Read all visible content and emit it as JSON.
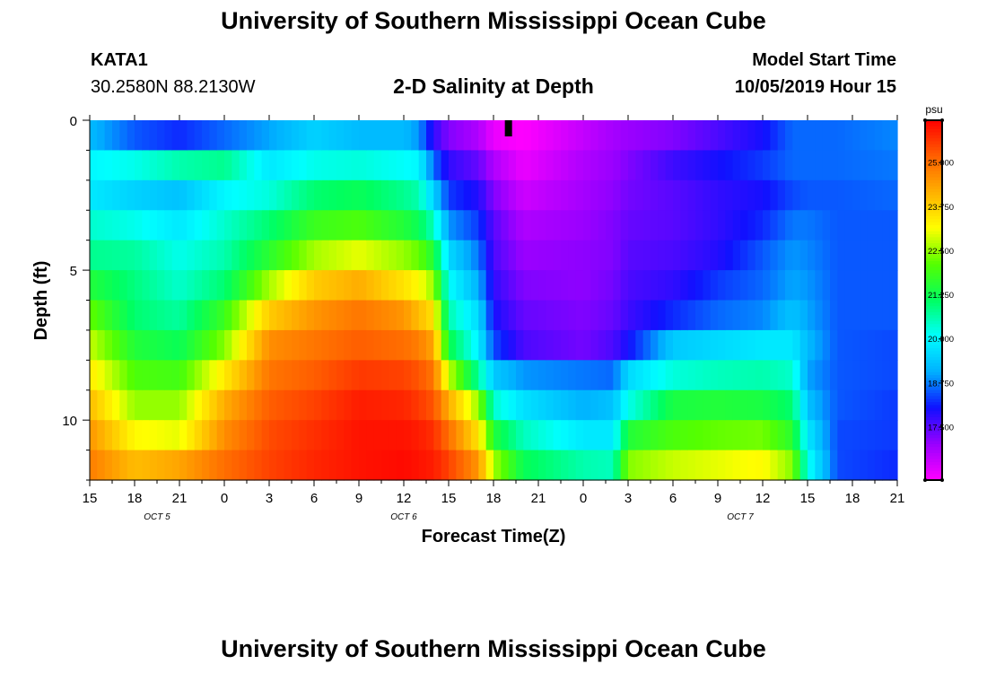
{
  "header": {
    "title": "University of Southern Mississippi Ocean Cube",
    "station": "KATA1",
    "coords": "30.2580N 88.2130W",
    "chart_title": "2-D Salinity at Depth",
    "model_label": "Model Start Time",
    "model_time": "10/05/2019 Hour 15"
  },
  "footer": {
    "title": "University of Southern Mississippi Ocean Cube"
  },
  "chart_data": {
    "type": "heatmap",
    "title": "2-D Salinity at Depth",
    "xlabel": "Forecast Time(Z)",
    "ylabel": "Depth (ft)",
    "x_tick_labels": [
      "15",
      "18",
      "21",
      "0",
      "3",
      "6",
      "9",
      "12",
      "15",
      "18",
      "21",
      "0",
      "3",
      "6",
      "9",
      "12",
      "15",
      "18",
      "21"
    ],
    "x_hours": [
      0,
      3,
      6,
      9,
      12,
      15,
      18,
      21,
      24,
      27,
      30,
      33,
      36,
      39,
      42,
      45,
      48,
      51,
      54
    ],
    "date_labels": [
      {
        "label": "OCT 5",
        "hour": 4.5
      },
      {
        "label": "OCT 6",
        "hour": 21
      },
      {
        "label": "OCT 7",
        "hour": 43.5
      }
    ],
    "x_range_hours": [
      0,
      54
    ],
    "y_ticks": [
      0,
      5,
      10
    ],
    "y_tick_labels": [
      "0",
      "5",
      "10"
    ],
    "y_range_ft": [
      0,
      12
    ],
    "current_time_marker_hour": 28,
    "colorbar": {
      "unit": "psu",
      "range": [
        16.0,
        26.2
      ],
      "tick_values": [
        25.0,
        23.75,
        22.5,
        21.25,
        20.0,
        18.75,
        17.5
      ],
      "tick_labels": [
        "25.000",
        "23.750",
        "22.500",
        "21.250",
        "20.000",
        "18.750",
        "17.500"
      ],
      "colors": [
        "#ff00ff",
        "#9900ff",
        "#1010ff",
        "#00b0ff",
        "#00ffff",
        "#00ff60",
        "#55ff00",
        "#ffff00",
        "#ffb000",
        "#ff6000",
        "#ff0000"
      ]
    },
    "layer_depths_ft": [
      0.5,
      1.5,
      2.5,
      3.5,
      4.5,
      5.5,
      6.5,
      7.5,
      8.5,
      9.5,
      10.5,
      11.5
    ],
    "salinity_keyframes": [
      {
        "hour": 0,
        "values": [
          19.2,
          20.0,
          19.8,
          20.4,
          20.8,
          21.5,
          22.2,
          22.8,
          23.4,
          24.0,
          24.5,
          24.8
        ]
      },
      {
        "hour": 3,
        "values": [
          18.5,
          20.2,
          19.5,
          20.2,
          20.7,
          20.9,
          21.0,
          21.5,
          22.0,
          22.5,
          23.2,
          24.0
        ]
      },
      {
        "hour": 6,
        "values": [
          18.2,
          20.6,
          19.3,
          19.8,
          20.2,
          20.4,
          20.7,
          21.2,
          21.9,
          22.5,
          23.0,
          24.3
        ]
      },
      {
        "hour": 9,
        "values": [
          18.6,
          20.8,
          20.0,
          20.4,
          20.6,
          21.0,
          21.8,
          22.4,
          23.4,
          24.2,
          24.6,
          25.0
        ]
      },
      {
        "hour": 12,
        "values": [
          19.0,
          19.8,
          20.3,
          21.0,
          21.6,
          22.6,
          23.8,
          24.6,
          24.9,
          25.2,
          25.4,
          25.5
        ]
      },
      {
        "hour": 15,
        "values": [
          19.5,
          20.2,
          21.0,
          21.8,
          22.6,
          23.8,
          24.5,
          24.9,
          25.2,
          25.5,
          25.7,
          25.8
        ]
      },
      {
        "hour": 18,
        "values": [
          19.2,
          20.3,
          21.2,
          22.0,
          23.0,
          24.2,
          24.9,
          25.2,
          25.6,
          25.9,
          26.0,
          26.0
        ]
      },
      {
        "hour": 21,
        "values": [
          19.2,
          20.1,
          20.8,
          21.5,
          22.5,
          23.5,
          24.5,
          25.0,
          25.5,
          25.8,
          26.0,
          26.1
        ]
      },
      {
        "hour": 22,
        "values": [
          18.9,
          20.0,
          20.6,
          21.2,
          22.2,
          23.2,
          24.0,
          24.8,
          25.3,
          25.6,
          25.9,
          26.0
        ]
      },
      {
        "hour": 23,
        "values": [
          17.8,
          18.6,
          19.5,
          20.5,
          21.5,
          22.5,
          23.5,
          24.3,
          24.9,
          25.3,
          25.7,
          25.9
        ]
      },
      {
        "hour": 24,
        "values": [
          17.2,
          17.8,
          18.3,
          18.9,
          19.6,
          20.1,
          20.6,
          21.3,
          22.8,
          24.2,
          25.0,
          25.5
        ]
      },
      {
        "hour": 26,
        "values": [
          16.8,
          17.4,
          17.9,
          18.3,
          18.7,
          19.1,
          19.6,
          19.9,
          20.7,
          22.5,
          23.5,
          24.5
        ]
      },
      {
        "hour": 27,
        "values": [
          16.2,
          16.8,
          17.2,
          17.5,
          17.6,
          17.8,
          18.0,
          18.4,
          19.4,
          20.4,
          21.5,
          22.6
        ]
      },
      {
        "hour": 29,
        "values": [
          16.0,
          16.2,
          16.5,
          16.8,
          17.0,
          17.2,
          17.4,
          17.6,
          18.9,
          19.7,
          20.5,
          21.2
        ]
      },
      {
        "hour": 33,
        "values": [
          16.6,
          16.8,
          16.9,
          17.0,
          17.1,
          17.1,
          17.2,
          17.3,
          18.7,
          19.1,
          19.8,
          20.6
        ]
      },
      {
        "hour": 35,
        "values": [
          16.9,
          17.0,
          17.1,
          17.2,
          17.2,
          17.3,
          17.4,
          17.6,
          18.6,
          19.3,
          19.8,
          20.5
        ]
      },
      {
        "hour": 36,
        "values": [
          17.0,
          17.2,
          17.3,
          17.4,
          17.5,
          17.6,
          17.7,
          18.0,
          19.6,
          20.2,
          21.5,
          22.4
        ]
      },
      {
        "hour": 39,
        "values": [
          17.2,
          17.7,
          17.5,
          17.5,
          17.6,
          17.8,
          18.2,
          19.4,
          20.3,
          21.4,
          22.0,
          22.8
        ]
      },
      {
        "hour": 42,
        "values": [
          17.6,
          18.0,
          17.8,
          17.8,
          17.9,
          18.3,
          18.6,
          19.6,
          20.5,
          21.5,
          22.2,
          23.0
        ]
      },
      {
        "hour": 45,
        "values": [
          18.0,
          18.3,
          18.0,
          18.2,
          18.5,
          18.6,
          18.8,
          19.8,
          20.6,
          21.4,
          22.3,
          23.2
        ]
      },
      {
        "hour": 47,
        "values": [
          18.6,
          18.6,
          18.4,
          18.7,
          18.9,
          19.0,
          19.3,
          19.8,
          20.4,
          21.0,
          21.6,
          22.4
        ]
      },
      {
        "hour": 48,
        "values": [
          18.6,
          18.6,
          18.5,
          18.7,
          18.8,
          18.9,
          19.0,
          19.2,
          19.0,
          19.3,
          19.8,
          20.2
        ]
      },
      {
        "hour": 50,
        "values": [
          18.6,
          18.6,
          18.5,
          18.5,
          18.5,
          18.5,
          18.5,
          18.5,
          18.5,
          18.5,
          18.4,
          18.4
        ]
      },
      {
        "hour": 54,
        "values": [
          18.8,
          18.7,
          18.6,
          18.5,
          18.5,
          18.5,
          18.5,
          18.4,
          18.4,
          18.3,
          18.3,
          18.2
        ]
      }
    ]
  }
}
